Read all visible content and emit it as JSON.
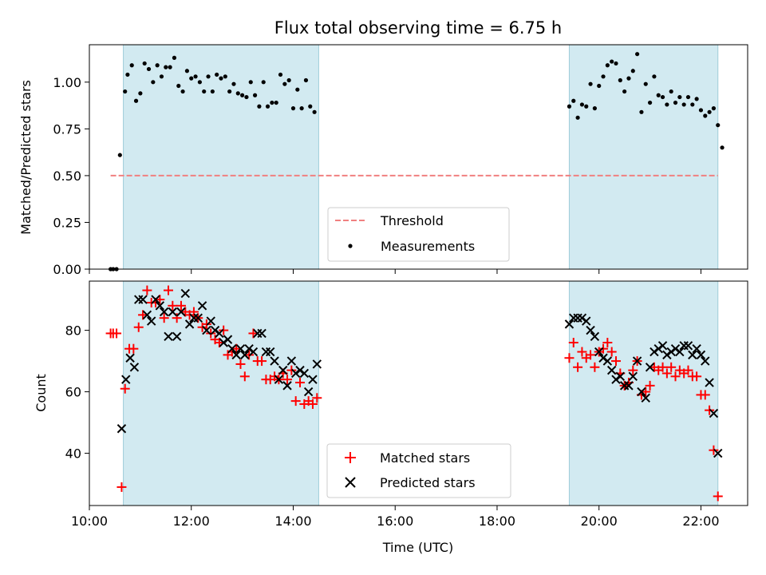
{
  "chart_data": [
    {
      "type": "scatter",
      "title": "Flux total observing time = 6.75 h",
      "xlabel": "",
      "ylabel": "Matched/Predicted stars",
      "xlim": [
        "10:00",
        "22:55"
      ],
      "ylim": [
        0,
        1.2
      ],
      "yticks": [
        "0.00",
        "0.25",
        "0.50",
        "0.75",
        "1.00"
      ],
      "shaded_intervals": [
        [
          "10:40",
          "14:30"
        ],
        [
          "19:25",
          "22:20"
        ]
      ],
      "threshold": {
        "name": "Threshold",
        "value": 0.5,
        "x_range": [
          "10:25",
          "22:20"
        ],
        "color": "#f08080",
        "style": "dashed"
      },
      "legend_position": "lower center",
      "series": [
        {
          "name": "Measurements",
          "marker": "dot",
          "color": "#000000",
          "points": [
            [
              "10:25",
              0.0
            ],
            [
              "10:28",
              0.0
            ],
            [
              "10:32",
              0.0
            ],
            [
              "10:36",
              0.61
            ],
            [
              "10:42",
              0.95
            ],
            [
              "10:45",
              1.04
            ],
            [
              "10:50",
              1.09
            ],
            [
              "10:55",
              0.9
            ],
            [
              "11:00",
              0.94
            ],
            [
              "11:05",
              1.1
            ],
            [
              "11:10",
              1.07
            ],
            [
              "11:15",
              1.0
            ],
            [
              "11:20",
              1.09
            ],
            [
              "11:25",
              1.03
            ],
            [
              "11:30",
              1.08
            ],
            [
              "11:35",
              1.08
            ],
            [
              "11:40",
              1.13
            ],
            [
              "11:45",
              0.98
            ],
            [
              "11:50",
              0.95
            ],
            [
              "11:55",
              1.06
            ],
            [
              "12:00",
              1.02
            ],
            [
              "12:05",
              1.03
            ],
            [
              "12:10",
              1.0
            ],
            [
              "12:15",
              0.95
            ],
            [
              "12:20",
              1.03
            ],
            [
              "12:25",
              0.95
            ],
            [
              "12:30",
              1.04
            ],
            [
              "12:35",
              1.02
            ],
            [
              "12:40",
              1.03
            ],
            [
              "12:45",
              0.95
            ],
            [
              "12:50",
              0.99
            ],
            [
              "12:55",
              0.94
            ],
            [
              "13:00",
              0.93
            ],
            [
              "13:05",
              0.92
            ],
            [
              "13:10",
              1.0
            ],
            [
              "13:15",
              0.93
            ],
            [
              "13:20",
              0.87
            ],
            [
              "13:25",
              1.0
            ],
            [
              "13:30",
              0.87
            ],
            [
              "13:35",
              0.89
            ],
            [
              "13:40",
              0.89
            ],
            [
              "13:45",
              1.04
            ],
            [
              "13:50",
              0.99
            ],
            [
              "13:55",
              1.01
            ],
            [
              "14:00",
              0.86
            ],
            [
              "14:05",
              0.96
            ],
            [
              "14:10",
              0.86
            ],
            [
              "14:15",
              1.01
            ],
            [
              "14:20",
              0.87
            ],
            [
              "14:25",
              0.84
            ],
            [
              "19:25",
              0.87
            ],
            [
              "19:30",
              0.9
            ],
            [
              "19:35",
              0.81
            ],
            [
              "19:40",
              0.88
            ],
            [
              "19:45",
              0.87
            ],
            [
              "19:50",
              0.99
            ],
            [
              "19:55",
              0.86
            ],
            [
              "20:00",
              0.98
            ],
            [
              "20:05",
              1.03
            ],
            [
              "20:10",
              1.09
            ],
            [
              "20:15",
              1.11
            ],
            [
              "20:20",
              1.1
            ],
            [
              "20:25",
              1.01
            ],
            [
              "20:30",
              0.95
            ],
            [
              "20:35",
              1.02
            ],
            [
              "20:40",
              1.06
            ],
            [
              "20:45",
              1.15
            ],
            [
              "20:50",
              0.84
            ],
            [
              "20:55",
              0.99
            ],
            [
              "21:00",
              0.89
            ],
            [
              "21:05",
              1.03
            ],
            [
              "21:10",
              0.93
            ],
            [
              "21:15",
              0.92
            ],
            [
              "21:20",
              0.88
            ],
            [
              "21:25",
              0.95
            ],
            [
              "21:30",
              0.89
            ],
            [
              "21:35",
              0.92
            ],
            [
              "21:40",
              0.88
            ],
            [
              "21:45",
              0.92
            ],
            [
              "21:50",
              0.88
            ],
            [
              "21:55",
              0.91
            ],
            [
              "22:00",
              0.85
            ],
            [
              "22:05",
              0.82
            ],
            [
              "22:10",
              0.84
            ],
            [
              "22:15",
              0.86
            ],
            [
              "22:20",
              0.77
            ],
            [
              "22:25",
              0.65
            ]
          ]
        }
      ]
    },
    {
      "type": "scatter",
      "title": "",
      "xlabel": "Time (UTC)",
      "ylabel": "Count",
      "xlim": [
        "10:00",
        "22:55"
      ],
      "ylim": [
        23,
        96
      ],
      "xticks": [
        "10:00",
        "12:00",
        "14:00",
        "16:00",
        "18:00",
        "20:00",
        "22:00"
      ],
      "yticks": [
        "40",
        "60",
        "80"
      ],
      "shaded_intervals": [
        [
          "10:40",
          "14:30"
        ],
        [
          "19:25",
          "22:20"
        ]
      ],
      "legend_position": "lower center",
      "series": [
        {
          "name": "Matched stars",
          "marker": "plus",
          "color": "#ff0000",
          "points": [
            [
              "10:25",
              79
            ],
            [
              "10:28",
              79
            ],
            [
              "10:32",
              79
            ],
            [
              "10:38",
              29
            ],
            [
              "10:42",
              61
            ],
            [
              "10:47",
              74
            ],
            [
              "10:52",
              74
            ],
            [
              "10:58",
              81
            ],
            [
              "11:03",
              85
            ],
            [
              "11:08",
              93
            ],
            [
              "11:13",
              89
            ],
            [
              "11:18",
              89
            ],
            [
              "11:23",
              90
            ],
            [
              "11:28",
              84
            ],
            [
              "11:33",
              93
            ],
            [
              "11:38",
              88
            ],
            [
              "11:43",
              84
            ],
            [
              "11:48",
              88
            ],
            [
              "11:53",
              86
            ],
            [
              "11:58",
              85
            ],
            [
              "12:03",
              86
            ],
            [
              "12:08",
              84
            ],
            [
              "12:13",
              81
            ],
            [
              "12:18",
              82
            ],
            [
              "12:23",
              79
            ],
            [
              "12:28",
              77
            ],
            [
              "12:33",
              76
            ],
            [
              "12:38",
              80
            ],
            [
              "12:43",
              72
            ],
            [
              "12:48",
              73
            ],
            [
              "12:53",
              74
            ],
            [
              "12:58",
              69
            ],
            [
              "13:03",
              65
            ],
            [
              "13:08",
              72
            ],
            [
              "13:13",
              79
            ],
            [
              "13:18",
              70
            ],
            [
              "13:23",
              70
            ],
            [
              "13:28",
              64
            ],
            [
              "13:33",
              64
            ],
            [
              "13:38",
              65
            ],
            [
              "13:43",
              64
            ],
            [
              "13:48",
              66
            ],
            [
              "13:53",
              64
            ],
            [
              "13:58",
              67
            ],
            [
              "14:03",
              57
            ],
            [
              "14:08",
              63
            ],
            [
              "14:13",
              56
            ],
            [
              "14:18",
              57
            ],
            [
              "14:23",
              56
            ],
            [
              "14:28",
              58
            ],
            [
              "19:25",
              71
            ],
            [
              "19:30",
              76
            ],
            [
              "19:35",
              68
            ],
            [
              "19:40",
              73
            ],
            [
              "19:45",
              71
            ],
            [
              "19:50",
              72
            ],
            [
              "19:55",
              68
            ],
            [
              "20:00",
              73
            ],
            [
              "20:05",
              74
            ],
            [
              "20:10",
              76
            ],
            [
              "20:15",
              73
            ],
            [
              "20:20",
              70
            ],
            [
              "20:25",
              66
            ],
            [
              "20:30",
              62
            ],
            [
              "20:35",
              63
            ],
            [
              "20:40",
              67
            ],
            [
              "20:45",
              70
            ],
            [
              "20:50",
              59
            ],
            [
              "20:55",
              60
            ],
            [
              "21:00",
              62
            ],
            [
              "21:05",
              68
            ],
            [
              "21:10",
              67
            ],
            [
              "21:15",
              68
            ],
            [
              "21:20",
              66
            ],
            [
              "21:25",
              68
            ],
            [
              "21:30",
              65
            ],
            [
              "21:35",
              67
            ],
            [
              "21:40",
              66
            ],
            [
              "21:45",
              67
            ],
            [
              "21:50",
              65
            ],
            [
              "21:55",
              65
            ],
            [
              "22:00",
              59
            ],
            [
              "22:05",
              59
            ],
            [
              "22:10",
              54
            ],
            [
              "22:15",
              41
            ],
            [
              "22:20",
              26
            ]
          ]
        },
        {
          "name": "Predicted stars",
          "marker": "x",
          "color": "#000000",
          "points": [
            [
              "10:38",
              48
            ],
            [
              "10:43",
              64
            ],
            [
              "10:48",
              71
            ],
            [
              "10:53",
              68
            ],
            [
              "10:58",
              90
            ],
            [
              "11:03",
              90
            ],
            [
              "11:08",
              85
            ],
            [
              "11:13",
              83
            ],
            [
              "11:18",
              90
            ],
            [
              "11:23",
              88
            ],
            [
              "11:28",
              86
            ],
            [
              "11:33",
              78
            ],
            [
              "11:38",
              86
            ],
            [
              "11:43",
              78
            ],
            [
              "11:48",
              86
            ],
            [
              "11:53",
              92
            ],
            [
              "11:58",
              82
            ],
            [
              "12:03",
              84
            ],
            [
              "12:08",
              84
            ],
            [
              "12:13",
              88
            ],
            [
              "12:18",
              80
            ],
            [
              "12:23",
              83
            ],
            [
              "12:28",
              80
            ],
            [
              "12:33",
              79
            ],
            [
              "12:38",
              76
            ],
            [
              "12:43",
              77
            ],
            [
              "12:48",
              74
            ],
            [
              "12:53",
              72
            ],
            [
              "12:58",
              74
            ],
            [
              "13:03",
              72
            ],
            [
              "13:08",
              74
            ],
            [
              "13:13",
              73
            ],
            [
              "13:18",
              79
            ],
            [
              "13:23",
              79
            ],
            [
              "13:28",
              73
            ],
            [
              "13:33",
              73
            ],
            [
              "13:38",
              70
            ],
            [
              "13:43",
              64
            ],
            [
              "13:48",
              67
            ],
            [
              "13:53",
              62
            ],
            [
              "13:58",
              70
            ],
            [
              "14:03",
              66
            ],
            [
              "14:08",
              67
            ],
            [
              "14:13",
              66
            ],
            [
              "14:18",
              60
            ],
            [
              "14:23",
              64
            ],
            [
              "14:28",
              69
            ],
            [
              "19:25",
              82
            ],
            [
              "19:30",
              84
            ],
            [
              "19:35",
              84
            ],
            [
              "19:40",
              84
            ],
            [
              "19:45",
              83
            ],
            [
              "19:50",
              80
            ],
            [
              "19:55",
              78
            ],
            [
              "20:00",
              73
            ],
            [
              "20:05",
              71
            ],
            [
              "20:10",
              70
            ],
            [
              "20:15",
              67
            ],
            [
              "20:20",
              64
            ],
            [
              "20:25",
              65
            ],
            [
              "20:30",
              62
            ],
            [
              "20:35",
              62
            ],
            [
              "20:40",
              65
            ],
            [
              "20:45",
              70
            ],
            [
              "20:50",
              60
            ],
            [
              "20:55",
              58
            ],
            [
              "21:00",
              68
            ],
            [
              "21:05",
              73
            ],
            [
              "21:10",
              74
            ],
            [
              "21:15",
              75
            ],
            [
              "21:20",
              72
            ],
            [
              "21:25",
              73
            ],
            [
              "21:30",
              74
            ],
            [
              "21:35",
              73
            ],
            [
              "21:40",
              75
            ],
            [
              "21:45",
              75
            ],
            [
              "21:50",
              72
            ],
            [
              "21:55",
              74
            ],
            [
              "22:00",
              72
            ],
            [
              "22:05",
              70
            ],
            [
              "22:10",
              63
            ],
            [
              "22:15",
              53
            ],
            [
              "22:20",
              40
            ]
          ]
        }
      ]
    }
  ]
}
